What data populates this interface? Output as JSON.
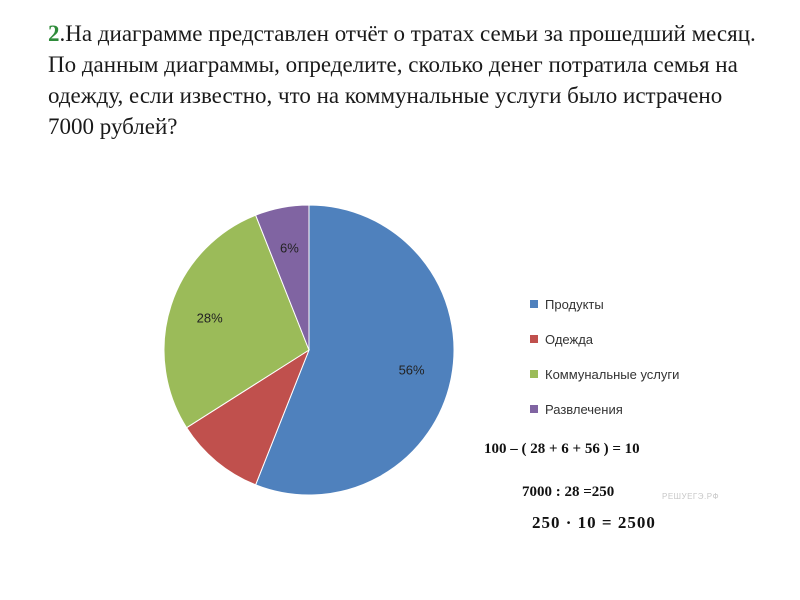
{
  "problem": {
    "number": "2",
    "text": ".На диаграмме представлен отчёт о тратах семьи за прошедший месяц. По данным диаграммы, определите, сколько денег потратила семья на одежду, если известно, что на коммунальные услуги было истрачено 7000 рублей?"
  },
  "chart_data": {
    "type": "pie",
    "categories": [
      "Продукты",
      "Одежда",
      "Коммунальные услуги",
      "Развлечения"
    ],
    "values": [
      56,
      10,
      28,
      6
    ],
    "labels": [
      "56%",
      "",
      "28%",
      "6%"
    ],
    "colors": [
      "#4f81bd",
      "#c0504d",
      "#9bbb59",
      "#8064a2"
    ],
    "legend_position": "right"
  },
  "calculations": [
    "100 – ( 28 + 6 + 56 ) = 10",
    "7000 : 28 =250",
    "250 · 10 = 2500"
  ],
  "watermark": "РЕШУЕГЭ.РФ"
}
